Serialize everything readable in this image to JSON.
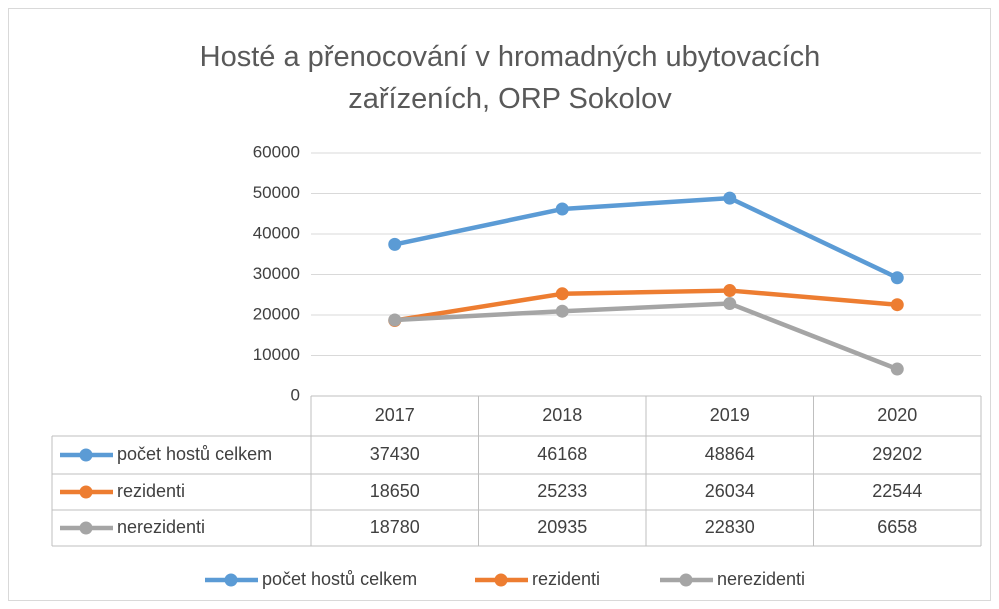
{
  "chart_data": {
    "type": "line",
    "title": "Hosté a přenocování v hromadných ubytovacích zařízeních, ORP Sokolov",
    "categories": [
      "2017",
      "2018",
      "2019",
      "2020"
    ],
    "series": [
      {
        "name": "počet hostů celkem",
        "color": "#5b9bd5",
        "values": [
          37430,
          46168,
          48864,
          29202
        ]
      },
      {
        "name": "rezidenti",
        "color": "#ed7d31",
        "values": [
          18650,
          25233,
          26034,
          22544
        ]
      },
      {
        "name": "nerezidenti",
        "color": "#a5a5a5",
        "values": [
          18780,
          20935,
          22830,
          6658
        ]
      }
    ],
    "ylim": [
      0,
      60000
    ],
    "yticks": [
      0,
      10000,
      20000,
      30000,
      40000,
      50000,
      60000
    ],
    "grid": true,
    "data_table": true,
    "legend": "bottom"
  }
}
